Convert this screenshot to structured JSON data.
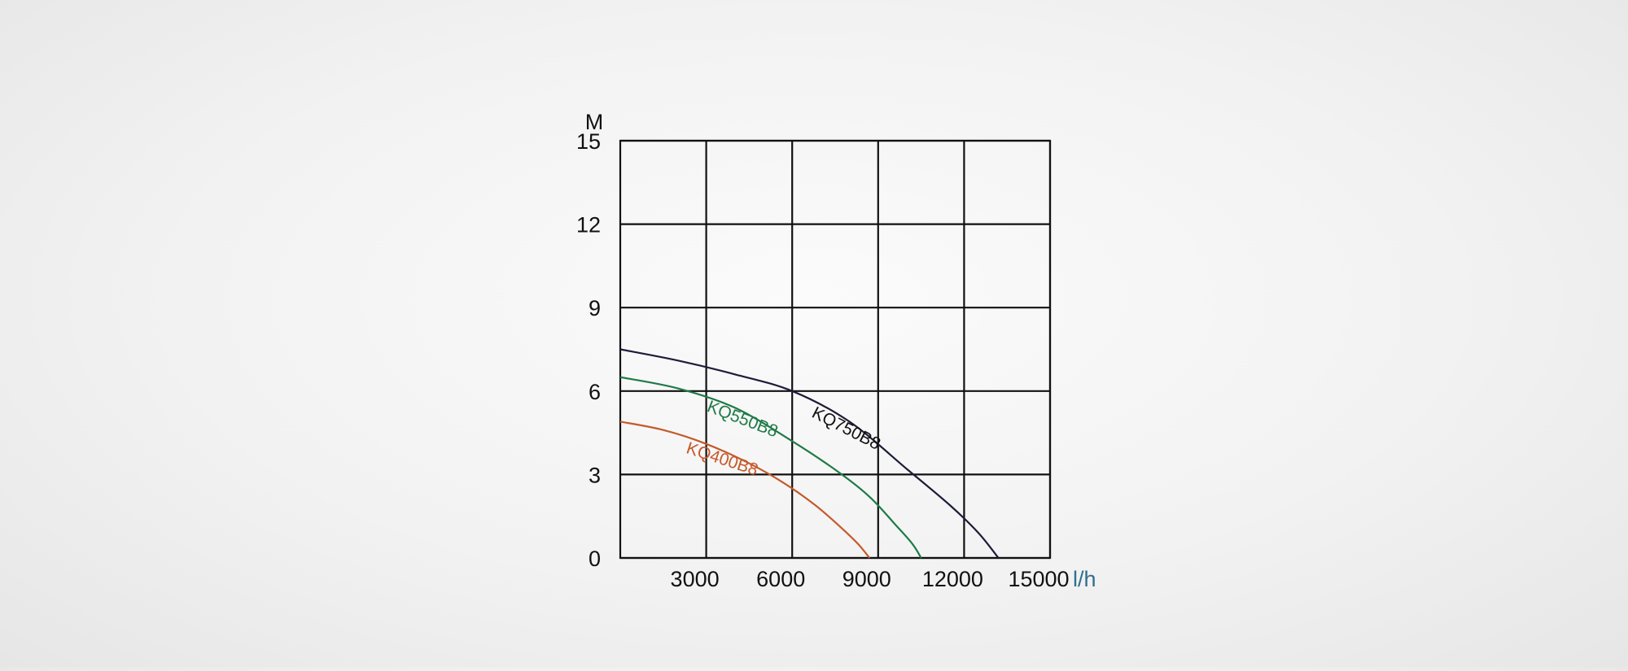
{
  "chart_data": {
    "type": "line",
    "y_unit_label": "M",
    "x_unit_label": "l/h",
    "xlim": [
      0,
      15000
    ],
    "ylim": [
      0,
      15
    ],
    "grid": true,
    "x_ticks": [
      3000,
      6000,
      9000,
      12000,
      15000
    ],
    "x_tick_labels": [
      "3000",
      "6000",
      "9000",
      "12000",
      "15000"
    ],
    "y_ticks": [
      0,
      3,
      6,
      9,
      12,
      15
    ],
    "y_tick_labels": [
      "0",
      "3",
      "6",
      "9",
      "12",
      "15"
    ],
    "colors": {
      "grid": "#111111",
      "axis_text": "#111111",
      "unit_x": "#2f6f8f"
    },
    "series": [
      {
        "name": "KQ750B8",
        "color": "#1c1c3a",
        "label_color": "#111111",
        "x": [
          0,
          2000,
          4000,
          6000,
          8000,
          10000,
          11500,
          12500,
          13200
        ],
        "y": [
          7.5,
          7.1,
          6.6,
          6.0,
          4.9,
          3.2,
          1.9,
          0.9,
          0
        ]
      },
      {
        "name": "KQ550B8",
        "color": "#1f7a46",
        "label_color": "#1f7a46",
        "x": [
          0,
          2000,
          4000,
          6000,
          7600,
          8700,
          9600,
          10200,
          10500
        ],
        "y": [
          6.5,
          6.1,
          5.4,
          4.2,
          3.1,
          2.2,
          1.2,
          0.5,
          0
        ]
      },
      {
        "name": "KQ400B8",
        "color": "#c45a2c",
        "label_color": "#c45a2c",
        "x": [
          0,
          1500,
          3000,
          4500,
          5700,
          6800,
          7700,
          8300,
          8700
        ],
        "y": [
          4.9,
          4.6,
          4.1,
          3.4,
          2.7,
          1.9,
          1.1,
          0.5,
          0
        ]
      }
    ]
  }
}
